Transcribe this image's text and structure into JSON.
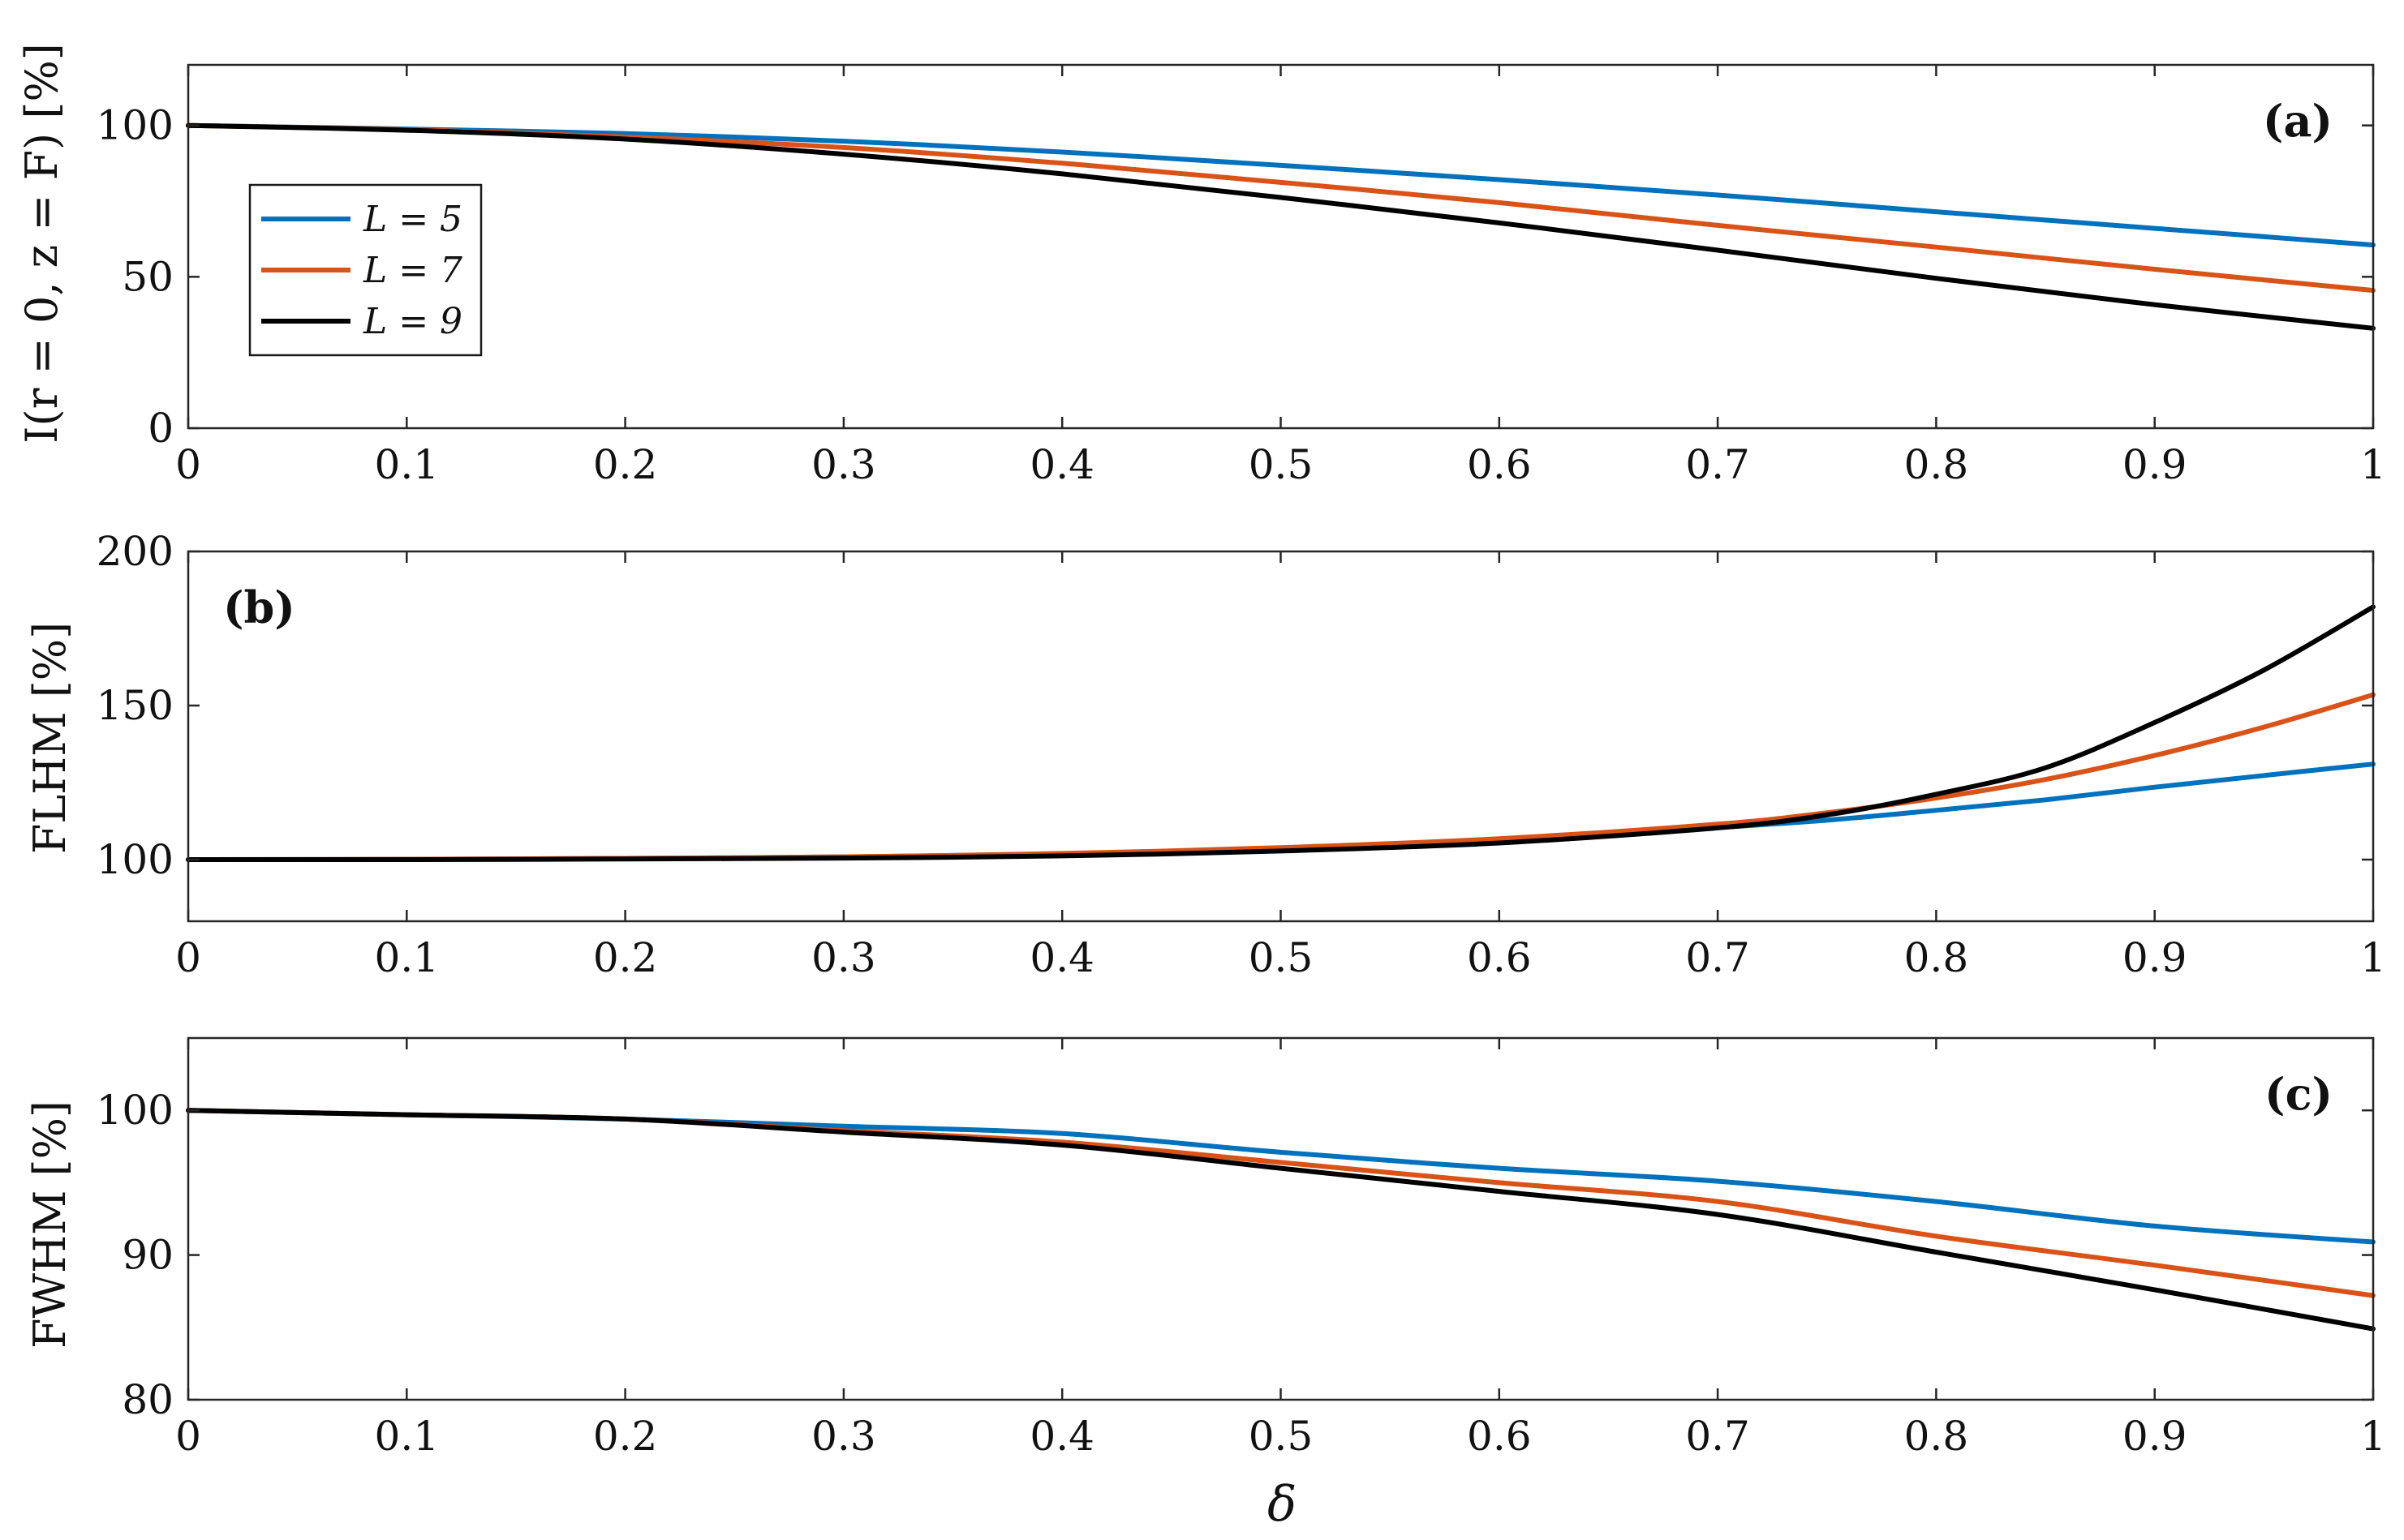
{
  "chart_data": [
    {
      "type": "line",
      "panel_label": "(a)",
      "ylabel": "I(r = 0, z = F) [%]",
      "xlim": [
        0,
        1
      ],
      "ylim": [
        0,
        120
      ],
      "xticks": [
        "0",
        "0.1",
        "0.2",
        "0.3",
        "0.4",
        "0.5",
        "0.6",
        "0.7",
        "0.8",
        "0.9",
        "1"
      ],
      "yticks": [
        "0",
        "50",
        "100"
      ],
      "x": [
        0,
        0.1,
        0.2,
        0.3,
        0.4,
        0.5,
        0.6,
        0.7,
        0.8,
        0.9,
        1.0
      ],
      "series": [
        {
          "name": "L = 5",
          "color": "#0072BD",
          "values": [
            100,
            98.8,
            97.3,
            94.8,
            91.2,
            86.8,
            82.1,
            77,
            71.5,
            66,
            60.5
          ]
        },
        {
          "name": "L = 7",
          "color": "#D95319",
          "values": [
            100,
            98.6,
            96.2,
            92.7,
            87.5,
            81.2,
            74.5,
            67,
            59.8,
            52.5,
            45.5
          ]
        },
        {
          "name": "L = 9",
          "color": "#000000",
          "values": [
            100,
            98.4,
            95.5,
            90.5,
            84,
            76.2,
            67.8,
            58.8,
            49.5,
            40.8,
            33
          ]
        }
      ],
      "legend": {
        "entries": [
          "L = 5",
          "L = 7",
          "L = 9"
        ],
        "position": "upper-left"
      },
      "grid": false
    },
    {
      "type": "line",
      "panel_label": "(b)",
      "ylabel": "FLHM [%]",
      "xlim": [
        0,
        1
      ],
      "ylim": [
        80,
        200
      ],
      "xticks": [
        "0",
        "0.1",
        "0.2",
        "0.3",
        "0.4",
        "0.5",
        "0.6",
        "0.7",
        "0.8",
        "0.9",
        "1"
      ],
      "yticks": [
        "100",
        "150",
        "200"
      ],
      "x": [
        0,
        0.1,
        0.2,
        0.3,
        0.4,
        0.5,
        0.6,
        0.7,
        0.75,
        0.8,
        0.85,
        0.9,
        0.95,
        1.0
      ],
      "series": [
        {
          "name": "L = 5",
          "color": "#0072BD",
          "values": [
            100,
            100.1,
            100.4,
            100.9,
            101.9,
            103.6,
            106.2,
            110.4,
            112.8,
            116,
            119.4,
            123.5,
            127.3,
            131
          ]
        },
        {
          "name": "L = 7",
          "color": "#D95319",
          "values": [
            100,
            100.1,
            100.4,
            100.9,
            102,
            103.9,
            106.8,
            111.5,
            115.2,
            120,
            126,
            133.8,
            143,
            153.5
          ]
        },
        {
          "name": "L = 9",
          "color": "#000000",
          "values": [
            100,
            100,
            100.2,
            100.5,
            101.2,
            102.8,
            105.4,
            110.3,
            114.5,
            121.2,
            129.8,
            144.5,
            161.5,
            182
          ]
        }
      ],
      "grid": false
    },
    {
      "type": "line",
      "panel_label": "(c)",
      "ylabel": "FWHM [%]",
      "xlabel": "δ",
      "xlim": [
        0,
        1
      ],
      "ylim": [
        80,
        105
      ],
      "xticks": [
        "0",
        "0.1",
        "0.2",
        "0.3",
        "0.4",
        "0.5",
        "0.6",
        "0.7",
        "0.8",
        "0.9",
        "1"
      ],
      "yticks": [
        "80",
        "90",
        "100"
      ],
      "x": [
        0,
        0.1,
        0.2,
        0.3,
        0.4,
        0.5,
        0.6,
        0.7,
        0.8,
        0.9,
        1.0
      ],
      "series": [
        {
          "name": "L = 5",
          "color": "#0072BD",
          "values": [
            100,
            99.7,
            99.4,
            98.9,
            98.4,
            97.1,
            96.0,
            95.1,
            93.7,
            92.0,
            90.9
          ]
        },
        {
          "name": "L = 7",
          "color": "#D95319",
          "values": [
            100,
            99.7,
            99.4,
            98.6,
            97.8,
            96.4,
            95.0,
            93.7,
            91.3,
            89.3,
            87.2
          ]
        },
        {
          "name": "L = 9",
          "color": "#000000",
          "values": [
            100,
            99.7,
            99.4,
            98.5,
            97.6,
            96.0,
            94.4,
            92.8,
            90.2,
            87.6,
            84.9
          ]
        }
      ],
      "grid": false
    }
  ]
}
